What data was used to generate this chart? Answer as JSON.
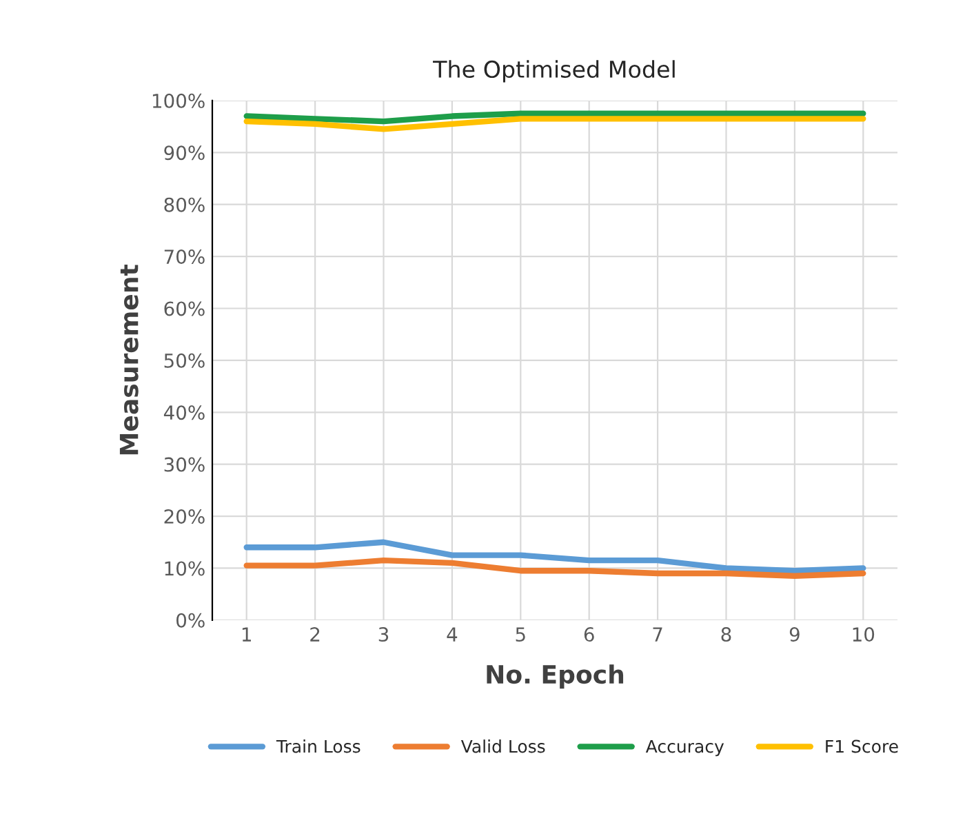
{
  "chart_data": {
    "type": "line",
    "title": "The Optimised Model",
    "xlabel": "No. Epoch",
    "ylabel": "Measurement",
    "categories": [
      "1",
      "2",
      "3",
      "4",
      "5",
      "6",
      "7",
      "8",
      "9",
      "10"
    ],
    "series": [
      {
        "name": "Train Loss",
        "color": "#5b9bd5",
        "values": [
          14,
          14,
          15,
          12.5,
          12.5,
          11.5,
          11.5,
          10,
          9.5,
          10
        ]
      },
      {
        "name": "Valid Loss",
        "color": "#ed7d31",
        "values": [
          10.5,
          10.5,
          11.5,
          11,
          9.5,
          9.5,
          9,
          9,
          8.5,
          9
        ]
      },
      {
        "name": "Accuracy",
        "color": "#1e9e4a",
        "values": [
          97,
          96.5,
          96,
          97,
          97.5,
          97.5,
          97.5,
          97.5,
          97.5,
          97.5
        ]
      },
      {
        "name": "F1 Score",
        "color": "#ffc000",
        "values": [
          96,
          95.5,
          94.5,
          95.5,
          96.5,
          96.5,
          96.5,
          96.5,
          96.5,
          96.5
        ]
      }
    ],
    "ylim": [
      0,
      100
    ],
    "yticks": [
      {
        "value": 0,
        "label": "0%"
      },
      {
        "value": 10,
        "label": "10%"
      },
      {
        "value": 20,
        "label": "20%"
      },
      {
        "value": 30,
        "label": "30%"
      },
      {
        "value": 40,
        "label": "40%"
      },
      {
        "value": 50,
        "label": "50%"
      },
      {
        "value": 60,
        "label": "60%"
      },
      {
        "value": 70,
        "label": "70%"
      },
      {
        "value": 80,
        "label": "80%"
      },
      {
        "value": 90,
        "label": "90%"
      },
      {
        "value": 100,
        "label": "100%"
      }
    ],
    "grid": true,
    "legend": "bottom",
    "marker": "none",
    "line_style": "solid"
  }
}
